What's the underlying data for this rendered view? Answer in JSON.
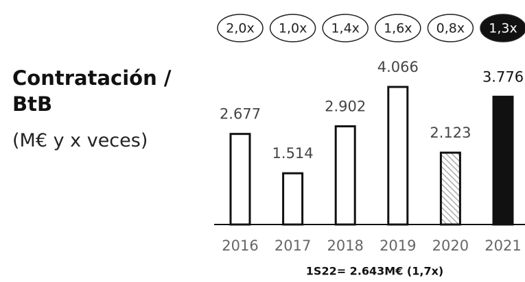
{
  "chart_data": {
    "type": "bar",
    "title": "Contratación / BtB",
    "subtitle": "(M€ y x veces)",
    "categories": [
      "2016",
      "2017",
      "2018",
      "2019",
      "2020",
      "2021"
    ],
    "values": [
      2677,
      1514,
      2902,
      4066,
      2123,
      3776
    ],
    "value_labels": [
      "2.677",
      "1.514",
      "2.902",
      "4.066",
      "2.123",
      "3.776"
    ],
    "bar_styles": [
      "outline",
      "outline",
      "outline",
      "outline",
      "hatched",
      "solid"
    ],
    "btb": {
      "values": [
        2.0,
        1.0,
        1.4,
        1.6,
        0.8,
        1.3
      ],
      "value_labels": [
        "2,0x",
        "1,0x",
        "1,4x",
        "1,6x",
        "0,8x",
        "1,3x"
      ]
    },
    "note": "1S22= 2.643M€ (1,7x)"
  }
}
